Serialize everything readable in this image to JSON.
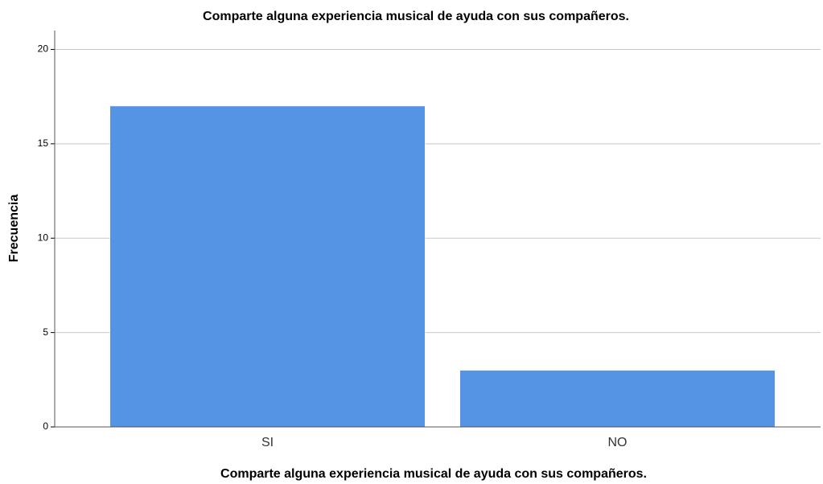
{
  "chart_data": {
    "type": "bar",
    "title": "Comparte alguna experiencia musical de ayuda con sus compañeros.",
    "x_label": "Comparte alguna experiencia musical de ayuda con sus compañeros.",
    "y_label": "Frecuencia",
    "categories": [
      "SI",
      "NO"
    ],
    "values": [
      17,
      3
    ],
    "color": "#5594e4",
    "ylim": [
      0,
      21
    ],
    "yticks": [
      0,
      5,
      10,
      15,
      20
    ],
    "grid": true
  }
}
